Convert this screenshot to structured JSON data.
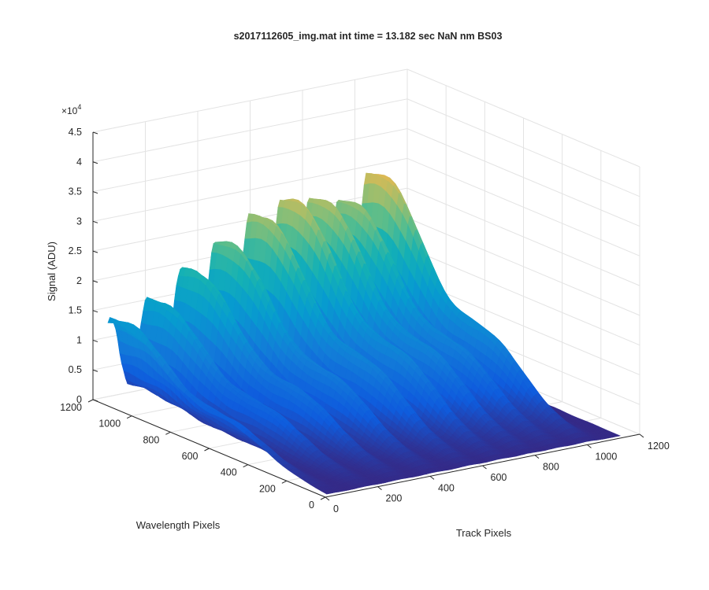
{
  "chart_data": {
    "type": "surface",
    "title": "s2017112605_img.mat int time = 13.182 sec  NaN nm BS03",
    "xlabel": "Track Pixels",
    "ylabel": "Wavelength Pixels",
    "zlabel": "Signal (ADU)",
    "z_multiplier_label": "×10",
    "z_multiplier_exponent": "4",
    "x_ticks": [
      "0",
      "200",
      "400",
      "600",
      "800",
      "1000",
      "1200"
    ],
    "y_ticks": [
      "0",
      "200",
      "400",
      "600",
      "800",
      "1000",
      "1200"
    ],
    "z_ticks": [
      "0",
      "0.5",
      "1",
      "1.5",
      "2",
      "2.5",
      "3",
      "3.5",
      "4",
      "4.5"
    ],
    "xlim": [
      0,
      1200
    ],
    "ylim": [
      0,
      1200
    ],
    "zlim": [
      0,
      45000
    ],
    "grid": true,
    "colormap": "parula",
    "ridges": [
      {
        "track_pixel": 30,
        "peak_signal": 15500
      },
      {
        "track_pixel": 170,
        "peak_signal": 17500
      },
      {
        "track_pixel": 300,
        "peak_signal": 22000
      },
      {
        "track_pixel": 430,
        "peak_signal": 26000
      },
      {
        "track_pixel": 560,
        "peak_signal": 29500
      },
      {
        "track_pixel": 680,
        "peak_signal": 31000
      },
      {
        "track_pixel": 790,
        "peak_signal": 30000
      },
      {
        "track_pixel": 900,
        "peak_signal": 28500
      },
      {
        "track_pixel": 1010,
        "peak_signal": 32500
      }
    ]
  }
}
